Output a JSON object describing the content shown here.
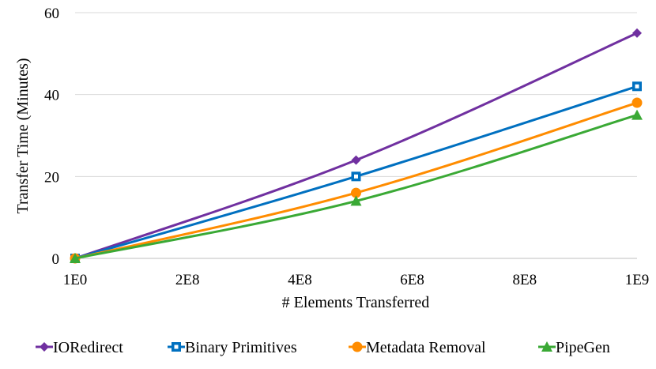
{
  "chart_data": {
    "type": "line",
    "title": "",
    "xlabel": "# Elements Transferred",
    "ylabel": "Transfer Time (Minutes)",
    "xlim": [
      0,
      1000000000
    ],
    "ylim": [
      0,
      60
    ],
    "x_ticks": [
      {
        "value": 0,
        "label": "1E0"
      },
      {
        "value": 200000000,
        "label": "2E8"
      },
      {
        "value": 400000000,
        "label": "4E8"
      },
      {
        "value": 600000000,
        "label": "6E8"
      },
      {
        "value": 800000000,
        "label": "8E8"
      },
      {
        "value": 1000000000,
        "label": "1E9"
      }
    ],
    "y_ticks": [
      {
        "value": 0,
        "label": "0"
      },
      {
        "value": 20,
        "label": "20"
      },
      {
        "value": 40,
        "label": "40"
      },
      {
        "value": 60,
        "label": "60"
      }
    ],
    "grid": true,
    "legend_position": "bottom",
    "x": [
      1,
      500000000,
      1000000000
    ],
    "series": [
      {
        "name": "IORedirect",
        "values": [
          0,
          24,
          55
        ],
        "color": "#7030a0",
        "marker": "diamond"
      },
      {
        "name": "Binary Primitives",
        "values": [
          0,
          20,
          42
        ],
        "color": "#0070c0",
        "marker": "square"
      },
      {
        "name": "Metadata Removal",
        "values": [
          0,
          16,
          38
        ],
        "color": "#ff8c00",
        "marker": "circle"
      },
      {
        "name": "PipeGen",
        "values": [
          0,
          14,
          35
        ],
        "color": "#3aa935",
        "marker": "triangle"
      }
    ]
  }
}
